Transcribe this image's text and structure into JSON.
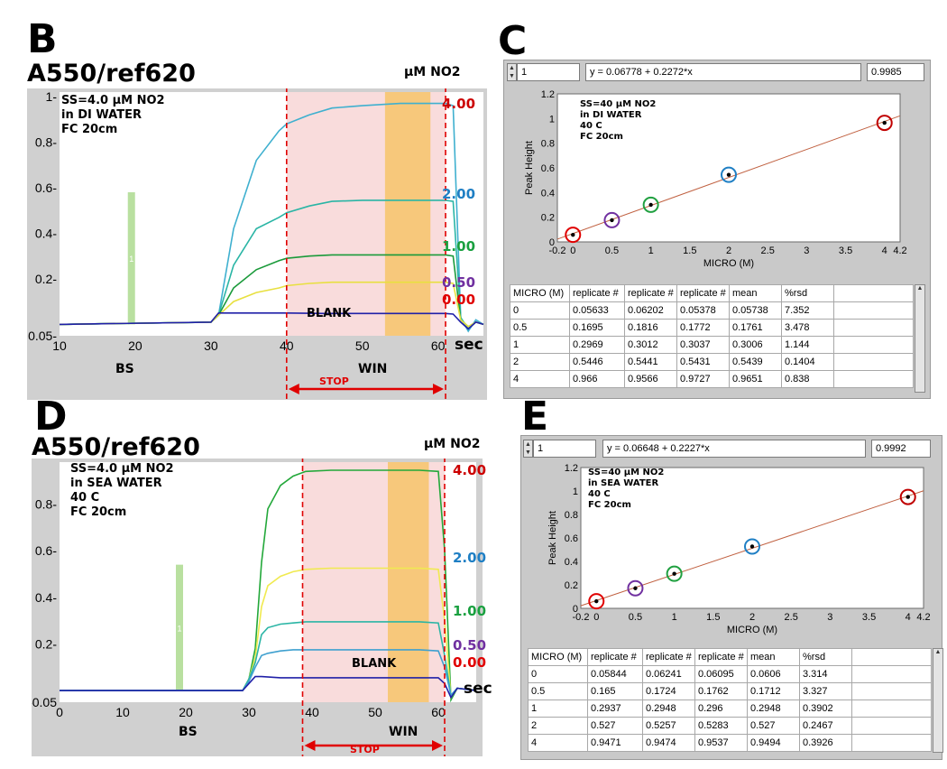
{
  "panels": {
    "B": {
      "letter": "B",
      "title": "A550/ref620",
      "unit": "μM NO2",
      "conditions": [
        "SS=4.0 μM NO2",
        "in DI WATER",
        "FC 20cm"
      ],
      "conc_labels": [
        {
          "text": "4.00",
          "color": "#cc0000"
        },
        {
          "text": "2.00",
          "color": "#1f7fc4"
        },
        {
          "text": "1.00",
          "color": "#1aa040"
        },
        {
          "text": "0.50",
          "color": "#7030a0"
        },
        {
          "text": "0.00",
          "color": "#e00000"
        }
      ],
      "blank": "BLANK",
      "bs": "BS",
      "win": "WIN",
      "sec": "sec",
      "stop": "STOP",
      "marker": "1"
    },
    "D": {
      "letter": "D",
      "title": "A550/ref620",
      "unit": "μM NO2",
      "conditions": [
        "SS=4.0 μM NO2",
        "in SEA WATER",
        "40 C",
        "FC 20cm"
      ],
      "conc_labels": [
        {
          "text": "4.00",
          "color": "#cc0000"
        },
        {
          "text": "2.00",
          "color": "#1f7fc4"
        },
        {
          "text": "1.00",
          "color": "#1aa040"
        },
        {
          "text": "0.50",
          "color": "#7030a0"
        },
        {
          "text": "0.00",
          "color": "#e00000"
        }
      ],
      "blank": "BLANK",
      "bs": "BS",
      "win": "WIN",
      "sec": "sec",
      "stop": "STOP",
      "marker": "1"
    },
    "C": {
      "letter": "C",
      "index": "1",
      "equation": "y = 0.06778 + 0.2272*x",
      "r2": "0.9985",
      "conditions": [
        "SS=40 μM NO2",
        "in DI WATER",
        "40 C",
        "FC 20cm"
      ],
      "headers": [
        "MICRO (M)",
        "replicate #",
        "replicate #",
        "replicate #",
        "mean",
        "%rsd"
      ],
      "rows": [
        [
          "0",
          "0.05633",
          "0.06202",
          "0.05378",
          "0.05738",
          "7.352"
        ],
        [
          "0.5",
          "0.1695",
          "0.1816",
          "0.1772",
          "0.1761",
          "3.478"
        ],
        [
          "1",
          "0.2969",
          "0.3012",
          "0.3037",
          "0.3006",
          "1.144"
        ],
        [
          "2",
          "0.5446",
          "0.5441",
          "0.5431",
          "0.5439",
          "0.1404"
        ],
        [
          "4",
          "0.966",
          "0.9566",
          "0.9727",
          "0.9651",
          "0.838"
        ]
      ]
    },
    "E": {
      "letter": "E",
      "index": "1",
      "equation": "y = 0.06648 + 0.2227*x",
      "r2": "0.9992",
      "conditions": [
        "SS=40 μM NO2",
        "in SEA WATER",
        "40 C",
        "FC 20cm"
      ],
      "headers": [
        "MICRO (M)",
        "replicate #",
        "replicate #",
        "replicate #",
        "mean",
        "%rsd"
      ],
      "rows": [
        [
          "0",
          "0.05844",
          "0.06241",
          "0.06095",
          "0.0606",
          "3.314"
        ],
        [
          "0.5",
          "0.165",
          "0.1724",
          "0.1762",
          "0.1712",
          "3.327"
        ],
        [
          "1",
          "0.2937",
          "0.2948",
          "0.296",
          "0.2948",
          "0.3902"
        ],
        [
          "2",
          "0.527",
          "0.5257",
          "0.5283",
          "0.527",
          "0.2467"
        ],
        [
          "4",
          "0.9471",
          "0.9474",
          "0.9537",
          "0.9494",
          "0.3926"
        ]
      ]
    }
  },
  "chart_data": [
    {
      "id": "B",
      "type": "line",
      "title": "A550/ref620",
      "xlabel": "sec",
      "ylabel": "",
      "xlim": [
        10,
        66
      ],
      "ylim": [
        -0.05,
        1.02
      ],
      "xticks": [
        10,
        20,
        30,
        40,
        50,
        60
      ],
      "xtick_labels": [
        "10",
        "20",
        "30",
        "40",
        "50",
        "60"
      ],
      "yticks": [
        -0.05,
        0.2,
        0.4,
        0.6,
        0.8,
        1.0
      ],
      "ytick_labels": [
        "0.05-",
        "0.2-",
        "0.4-",
        "0.6-",
        "0.8-",
        "1-"
      ],
      "stop_window": [
        40,
        61
      ],
      "win_band": [
        53,
        59
      ],
      "bs_bar": {
        "x": 19.5,
        "y": 0.58
      },
      "series": [
        {
          "color": "#3fb0cf",
          "x": [
            10,
            30,
            31,
            33,
            36,
            39,
            40,
            43,
            46,
            50,
            55,
            60,
            61,
            62,
            63,
            64,
            65,
            66
          ],
          "y": [
            0,
            0.01,
            0.04,
            0.42,
            0.72,
            0.85,
            0.88,
            0.92,
            0.95,
            0.96,
            0.97,
            0.97,
            0.97,
            0.96,
            0.03,
            -0.03,
            0.02,
            0
          ]
        },
        {
          "color": "#2ab5a5",
          "x": [
            10,
            30,
            31,
            33,
            36,
            39,
            40,
            43,
            46,
            50,
            55,
            60,
            61,
            62,
            63,
            64,
            65,
            66
          ],
          "y": [
            0,
            0.01,
            0.04,
            0.26,
            0.42,
            0.47,
            0.49,
            0.52,
            0.54,
            0.545,
            0.545,
            0.545,
            0.545,
            0.54,
            0.03,
            -0.02,
            0.01,
            0
          ]
        },
        {
          "color": "#1a9a3a",
          "x": [
            10,
            30,
            31,
            33,
            36,
            39,
            40,
            43,
            46,
            50,
            55,
            60,
            61,
            62,
            63,
            64,
            65,
            66
          ],
          "y": [
            0,
            0.01,
            0.04,
            0.16,
            0.24,
            0.28,
            0.29,
            0.3,
            0.305,
            0.305,
            0.305,
            0.305,
            0.305,
            0.3,
            0.02,
            -0.01,
            0.01,
            0
          ]
        },
        {
          "color": "#e8e040",
          "x": [
            10,
            30,
            31,
            33,
            36,
            39,
            40,
            43,
            46,
            50,
            55,
            60,
            61,
            62,
            63,
            64,
            65,
            66
          ],
          "y": [
            0,
            0.01,
            0.04,
            0.1,
            0.14,
            0.16,
            0.17,
            0.18,
            0.185,
            0.185,
            0.185,
            0.185,
            0.185,
            0.18,
            0.02,
            -0.01,
            0.01,
            0
          ]
        },
        {
          "color": "#2020a8",
          "x": [
            10,
            30,
            31,
            32,
            35,
            40,
            45,
            50,
            55,
            60,
            61,
            62,
            63,
            64,
            65,
            66
          ],
          "y": [
            0,
            0.01,
            0.05,
            0.05,
            0.05,
            0.05,
            0.048,
            0.048,
            0.048,
            0.048,
            0.048,
            0.045,
            0.01,
            -0.02,
            0.01,
            0
          ]
        }
      ]
    },
    {
      "id": "D",
      "type": "line",
      "title": "A550/ref620",
      "xlabel": "sec",
      "ylabel": "",
      "xlim": [
        0,
        66
      ],
      "ylim": [
        -0.05,
        0.98
      ],
      "xticks": [
        0,
        10,
        20,
        30,
        40,
        50,
        60
      ],
      "xtick_labels": [
        "0",
        "10",
        "20",
        "30",
        "40",
        "50",
        "60"
      ],
      "yticks": [
        -0.05,
        0.2,
        0.4,
        0.6,
        0.8
      ],
      "ytick_labels": [
        "-0.05",
        "0.2-",
        "0.4-",
        "0.6-",
        "0.8-"
      ],
      "stop_window": [
        38.5,
        61
      ],
      "win_band": [
        52,
        58.5
      ],
      "bs_bar": {
        "x": 19,
        "y": 0.54
      },
      "series": [
        {
          "color": "#23a83a",
          "x": [
            0,
            29,
            30,
            31,
            32,
            33,
            35,
            37,
            39,
            43,
            50,
            57,
            60,
            61,
            62,
            63,
            66
          ],
          "y": [
            0,
            0,
            0.05,
            0.18,
            0.55,
            0.78,
            0.88,
            0.92,
            0.94,
            0.945,
            0.945,
            0.945,
            0.94,
            0.6,
            -0.04,
            0.01,
            0
          ]
        },
        {
          "color": "#f0ea50",
          "x": [
            0,
            29,
            30,
            31,
            32,
            33,
            35,
            37,
            39,
            43,
            50,
            57,
            60,
            61,
            62,
            63,
            66
          ],
          "y": [
            0,
            0,
            0.05,
            0.14,
            0.36,
            0.45,
            0.49,
            0.51,
            0.52,
            0.525,
            0.525,
            0.525,
            0.52,
            0.3,
            -0.03,
            0.01,
            0
          ]
        },
        {
          "color": "#2ab5a5",
          "x": [
            0,
            29,
            30,
            31,
            32,
            33,
            35,
            37,
            39,
            43,
            50,
            57,
            60,
            61,
            62,
            63,
            66
          ],
          "y": [
            0,
            0,
            0.05,
            0.12,
            0.24,
            0.27,
            0.285,
            0.29,
            0.295,
            0.295,
            0.295,
            0.295,
            0.29,
            0.15,
            -0.02,
            0.01,
            0
          ]
        },
        {
          "color": "#3fa0cf",
          "x": [
            0,
            29,
            30,
            31,
            32,
            33,
            35,
            37,
            39,
            43,
            50,
            57,
            60,
            61,
            62,
            63,
            66
          ],
          "y": [
            0,
            0,
            0.04,
            0.1,
            0.15,
            0.16,
            0.17,
            0.175,
            0.175,
            0.175,
            0.175,
            0.175,
            0.17,
            0.1,
            -0.02,
            0.01,
            0
          ]
        },
        {
          "color": "#2020a8",
          "x": [
            0,
            29,
            30,
            31,
            32,
            35,
            40,
            45,
            50,
            55,
            60,
            61,
            62,
            63,
            66
          ],
          "y": [
            0,
            0,
            0.03,
            0.06,
            0.06,
            0.055,
            0.055,
            0.055,
            0.055,
            0.055,
            0.055,
            0.03,
            -0.03,
            0.01,
            0
          ]
        }
      ]
    },
    {
      "id": "C",
      "type": "scatter",
      "xlabel": "MICRO (M)",
      "ylabel": "Peak Height",
      "xlim": [
        -0.2,
        4.2
      ],
      "ylim": [
        0,
        1.2
      ],
      "xticks": [
        -0.2,
        0,
        0.5,
        1,
        1.5,
        2,
        2.5,
        3,
        3.5,
        4,
        4.2
      ],
      "xtick_labels": [
        "-0.2",
        "0",
        "0.5",
        "1",
        "1.5",
        "2",
        "2.5",
        "3",
        "3.5",
        "4",
        "4.2"
      ],
      "yticks": [
        0,
        0.2,
        0.4,
        0.6,
        0.8,
        1,
        1.2
      ],
      "ytick_labels": [
        "0",
        "0.2",
        "0.4",
        "0.6",
        "0.8",
        "1",
        "1.2"
      ],
      "fit": {
        "intercept": 0.06778,
        "slope": 0.2272,
        "color": "#c06040"
      },
      "points": {
        "x": [
          0,
          0.5,
          1,
          2,
          4
        ],
        "y": [
          0.05738,
          0.1761,
          0.3006,
          0.5439,
          0.9651
        ],
        "ring_colors": [
          "#e00000",
          "#7030a0",
          "#20a040",
          "#1f7fc4",
          "#c00000"
        ]
      }
    },
    {
      "id": "E",
      "type": "scatter",
      "xlabel": "MICRO (M)",
      "ylabel": "Peak Height",
      "xlim": [
        -0.2,
        4.2
      ],
      "ylim": [
        0,
        1.2
      ],
      "xticks": [
        -0.2,
        0,
        0.5,
        1,
        1.5,
        2,
        2.5,
        3,
        3.5,
        4,
        4.2
      ],
      "xtick_labels": [
        "-0.2",
        "0",
        "0.5",
        "1",
        "1.5",
        "2",
        "2.5",
        "3",
        "3.5",
        "4",
        "4.2"
      ],
      "yticks": [
        0,
        0.2,
        0.4,
        0.6,
        0.8,
        1,
        1.2
      ],
      "ytick_labels": [
        "0",
        "0.2",
        "0.4",
        "0.6",
        "0.8",
        "1",
        "1.2"
      ],
      "fit": {
        "intercept": 0.06648,
        "slope": 0.2227,
        "color": "#c06040"
      },
      "points": {
        "x": [
          0,
          0.5,
          1,
          2,
          4
        ],
        "y": [
          0.0606,
          0.1712,
          0.2948,
          0.527,
          0.9494
        ],
        "ring_colors": [
          "#e00000",
          "#7030a0",
          "#20a040",
          "#1f7fc4",
          "#c00000"
        ]
      }
    }
  ]
}
